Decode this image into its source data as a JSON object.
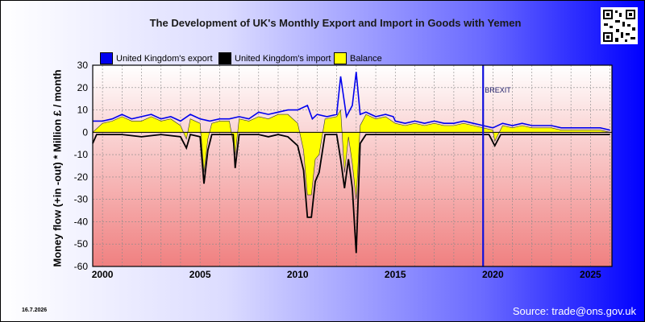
{
  "chart_data": {
    "type": "area",
    "title": "The Development of UK's Monthly Export and Import in Goods with Yemen",
    "ylabel": "Money flow (+in -out) * Million £ / month",
    "xlabel": "",
    "ylim": [
      -60,
      30
    ],
    "xlim": [
      1999.5,
      2026.1
    ],
    "y_ticks": [
      "30",
      "20",
      "10",
      "0",
      "-10",
      "-20",
      "-30",
      "-40",
      "-50",
      "-60"
    ],
    "x_ticks": [
      "2000",
      "2005",
      "2010",
      "2015",
      "2020",
      "2025"
    ],
    "legend_placement": "top",
    "grid": true,
    "annotation": {
      "text": "BREXIT",
      "x": 2019.5
    },
    "series": [
      {
        "name": "United Kingdom's export",
        "color": "#0000ee",
        "points": [
          [
            1999.5,
            5
          ],
          [
            2000,
            5
          ],
          [
            2000.5,
            6
          ],
          [
            2001,
            8
          ],
          [
            2001.5,
            6
          ],
          [
            2002,
            7
          ],
          [
            2002.5,
            8
          ],
          [
            2003,
            6
          ],
          [
            2003.5,
            7
          ],
          [
            2004,
            5
          ],
          [
            2004.5,
            8
          ],
          [
            2005,
            6
          ],
          [
            2005.5,
            5
          ],
          [
            2006,
            6
          ],
          [
            2006.5,
            6
          ],
          [
            2007,
            7
          ],
          [
            2007.5,
            6
          ],
          [
            2008,
            9
          ],
          [
            2008.5,
            8
          ],
          [
            2009,
            9
          ],
          [
            2009.5,
            10
          ],
          [
            2010,
            10
          ],
          [
            2010.5,
            12
          ],
          [
            2010.75,
            6
          ],
          [
            2011,
            8
          ],
          [
            2011.5,
            7
          ],
          [
            2012,
            8
          ],
          [
            2012.2,
            25
          ],
          [
            2012.5,
            7
          ],
          [
            2012.8,
            12
          ],
          [
            2013,
            27
          ],
          [
            2013.2,
            8
          ],
          [
            2013.5,
            9
          ],
          [
            2014,
            7
          ],
          [
            2014.5,
            8
          ],
          [
            2014.9,
            7
          ],
          [
            2015,
            5
          ],
          [
            2015.5,
            4
          ],
          [
            2016,
            5
          ],
          [
            2016.5,
            4
          ],
          [
            2017,
            5
          ],
          [
            2017.5,
            4
          ],
          [
            2018,
            4
          ],
          [
            2018.5,
            5
          ],
          [
            2019,
            4
          ],
          [
            2019.5,
            3
          ],
          [
            2020,
            2
          ],
          [
            2020.5,
            4
          ],
          [
            2021,
            3
          ],
          [
            2021.5,
            4
          ],
          [
            2022,
            3
          ],
          [
            2022.5,
            3
          ],
          [
            2023,
            3
          ],
          [
            2023.5,
            2
          ],
          [
            2024,
            2
          ],
          [
            2024.5,
            2
          ],
          [
            2025,
            2
          ],
          [
            2025.5,
            2
          ],
          [
            2026,
            1
          ]
        ]
      },
      {
        "name": "United Kingdom's import",
        "color": "#000000",
        "points": [
          [
            1999.5,
            -5
          ],
          [
            1999.7,
            -1
          ],
          [
            2000,
            -1
          ],
          [
            2001,
            -1
          ],
          [
            2002,
            -2
          ],
          [
            2003,
            -1
          ],
          [
            2004,
            -2
          ],
          [
            2004.3,
            -7
          ],
          [
            2004.5,
            -1
          ],
          [
            2005,
            -2
          ],
          [
            2005.2,
            -23
          ],
          [
            2005.4,
            -8
          ],
          [
            2005.6,
            -1
          ],
          [
            2006,
            -1
          ],
          [
            2006.7,
            -1
          ],
          [
            2006.8,
            -16
          ],
          [
            2007,
            -1
          ],
          [
            2008,
            -1
          ],
          [
            2008.5,
            -2
          ],
          [
            2009,
            -1
          ],
          [
            2009.5,
            -2
          ],
          [
            2010,
            -6
          ],
          [
            2010.3,
            -17
          ],
          [
            2010.5,
            -38
          ],
          [
            2010.7,
            -38
          ],
          [
            2010.9,
            -22
          ],
          [
            2011.1,
            -18
          ],
          [
            2011.4,
            -1
          ],
          [
            2012,
            -1
          ],
          [
            2012.2,
            -12
          ],
          [
            2012.4,
            -25
          ],
          [
            2012.6,
            -12
          ],
          [
            2012.8,
            -25
          ],
          [
            2013,
            -54
          ],
          [
            2013.2,
            -5
          ],
          [
            2013.5,
            -1
          ],
          [
            2014,
            -1
          ],
          [
            2014.5,
            -1
          ],
          [
            2015,
            -1
          ],
          [
            2016,
            -1
          ],
          [
            2017,
            -1
          ],
          [
            2018,
            -1
          ],
          [
            2019,
            -1
          ],
          [
            2019.8,
            -1
          ],
          [
            2020.1,
            -6
          ],
          [
            2020.4,
            -1
          ],
          [
            2021,
            -1
          ],
          [
            2022,
            -1
          ],
          [
            2023,
            -1
          ],
          [
            2024,
            -1
          ],
          [
            2025,
            -1
          ],
          [
            2026,
            -1
          ]
        ]
      },
      {
        "name": "Balance",
        "color": "#ffff00",
        "points": [
          [
            1999.5,
            0
          ],
          [
            2000,
            4
          ],
          [
            2000.5,
            5
          ],
          [
            2001,
            7
          ],
          [
            2001.5,
            5
          ],
          [
            2002,
            5
          ],
          [
            2002.5,
            7
          ],
          [
            2003,
            5
          ],
          [
            2003.5,
            6
          ],
          [
            2004,
            3
          ],
          [
            2004.3,
            -3
          ],
          [
            2004.5,
            6
          ],
          [
            2005,
            4
          ],
          [
            2005.2,
            -18
          ],
          [
            2005.4,
            -3
          ],
          [
            2005.6,
            4
          ],
          [
            2006,
            5
          ],
          [
            2006.5,
            5
          ],
          [
            2006.8,
            -10
          ],
          [
            2007,
            6
          ],
          [
            2007.5,
            5
          ],
          [
            2008,
            7
          ],
          [
            2008.5,
            6
          ],
          [
            2009,
            8
          ],
          [
            2009.5,
            8
          ],
          [
            2010,
            4
          ],
          [
            2010.3,
            -8
          ],
          [
            2010.5,
            -28
          ],
          [
            2010.7,
            -28
          ],
          [
            2010.9,
            -12
          ],
          [
            2011.1,
            -10
          ],
          [
            2011.4,
            6
          ],
          [
            2012,
            7
          ],
          [
            2012.2,
            10
          ],
          [
            2012.4,
            -18
          ],
          [
            2012.6,
            -2
          ],
          [
            2012.8,
            -14
          ],
          [
            2013,
            -30
          ],
          [
            2013.2,
            3
          ],
          [
            2013.5,
            8
          ],
          [
            2014,
            6
          ],
          [
            2014.5,
            7
          ],
          [
            2015,
            4
          ],
          [
            2015.5,
            3
          ],
          [
            2016,
            4
          ],
          [
            2016.5,
            3
          ],
          [
            2017,
            4
          ],
          [
            2017.5,
            3
          ],
          [
            2018,
            3
          ],
          [
            2018.5,
            4
          ],
          [
            2019,
            3
          ],
          [
            2019.5,
            2
          ],
          [
            2020,
            1
          ],
          [
            2020.1,
            -4
          ],
          [
            2020.5,
            3
          ],
          [
            2021,
            2
          ],
          [
            2021.5,
            3
          ],
          [
            2022,
            2
          ],
          [
            2022.5,
            2
          ],
          [
            2023,
            2
          ],
          [
            2023.5,
            1
          ],
          [
            2024,
            1
          ],
          [
            2024.5,
            1
          ],
          [
            2025,
            1
          ],
          [
            2025.5,
            1
          ],
          [
            2026,
            0
          ]
        ]
      }
    ]
  },
  "footer": {
    "date": "16.7.2026",
    "source": "Source: trade@ons.gov.uk"
  }
}
